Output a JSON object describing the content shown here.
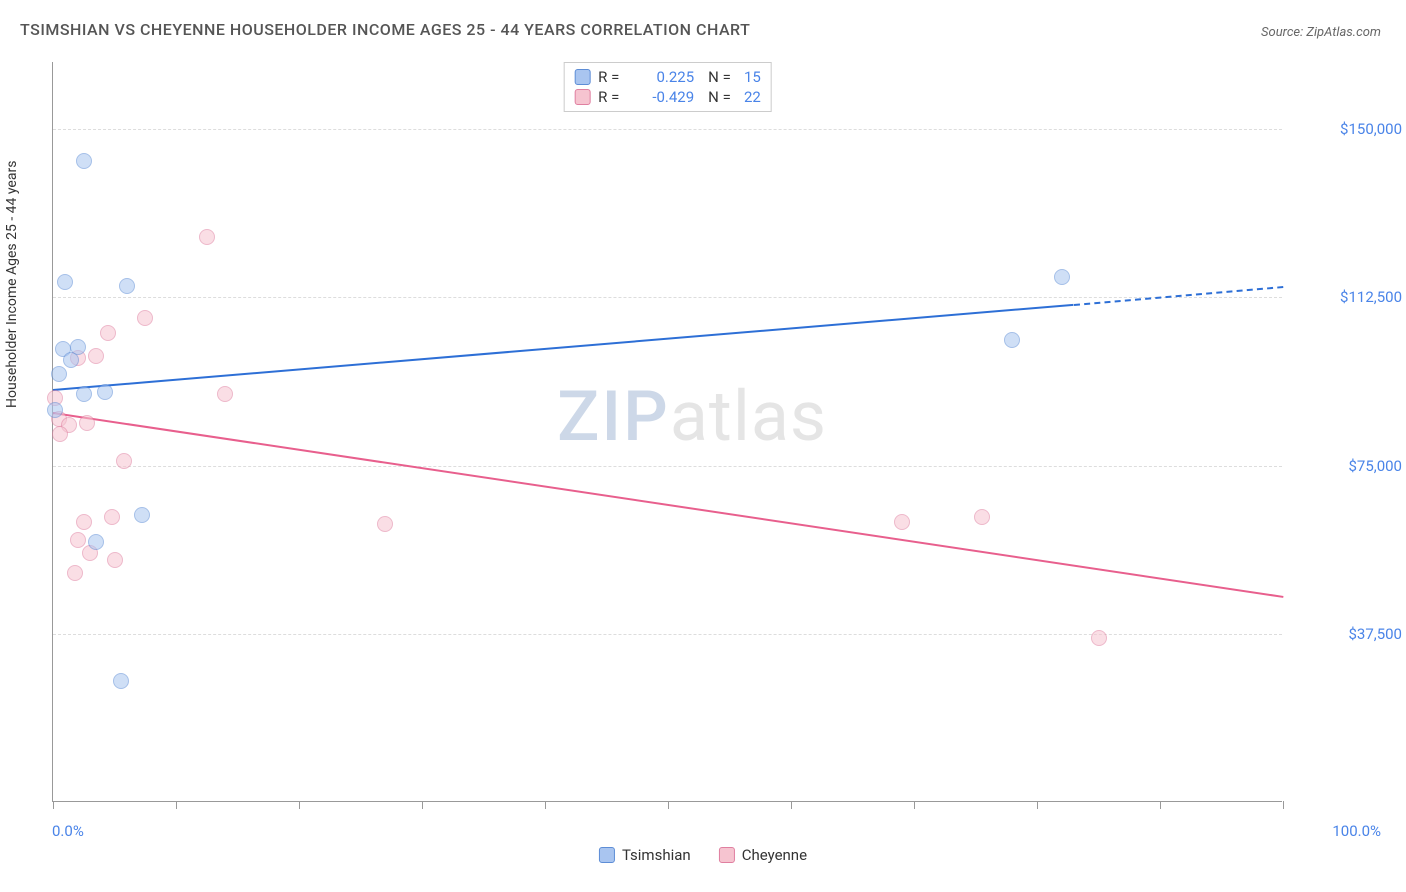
{
  "title": "TSIMSHIAN VS CHEYENNE HOUSEHOLDER INCOME AGES 25 - 44 YEARS CORRELATION CHART",
  "source": "Source: ZipAtlas.com",
  "watermark_zip": "ZIP",
  "watermark_atlas": "atlas",
  "chart": {
    "type": "scatter",
    "ylabel": "Householder Income Ages 25 - 44 years",
    "xlim": [
      0,
      100
    ],
    "ylim": [
      0,
      165000
    ],
    "x_tick_positions": [
      0,
      10,
      20,
      30,
      40,
      50,
      60,
      70,
      80,
      90,
      100
    ],
    "x_start_label": "0.0%",
    "x_end_label": "100.0%",
    "y_ticks": [
      {
        "value": 37500,
        "label": "$37,500"
      },
      {
        "value": 75000,
        "label": "$75,000"
      },
      {
        "value": 112500,
        "label": "$112,500"
      },
      {
        "value": 150000,
        "label": "$150,000"
      }
    ],
    "label_fontsize": 14,
    "axis_label_color": "#4a84e8",
    "grid_color": "#dddddd",
    "background_color": "#ffffff",
    "point_radius": 8,
    "point_opacity": 0.55,
    "point_border_width": 1.5
  },
  "series": {
    "tsimshian": {
      "label": "Tsimshian",
      "color_fill": "#a9c5f0",
      "color_stroke": "#5d8dd6",
      "trend_color": "#2d6fd6",
      "r": "0.225",
      "n": "15",
      "trend": {
        "x1": 0,
        "y1": 92000,
        "x2": 83,
        "y2": 111000,
        "dashed_from_x": 83,
        "dashed_to_x": 100,
        "dashed_y2": 115000
      },
      "points": [
        {
          "x": 2.5,
          "y": 143000
        },
        {
          "x": 1.0,
          "y": 116000
        },
        {
          "x": 6.0,
          "y": 115000
        },
        {
          "x": 0.8,
          "y": 101000
        },
        {
          "x": 2.0,
          "y": 101500
        },
        {
          "x": 1.5,
          "y": 98500
        },
        {
          "x": 0.5,
          "y": 95500
        },
        {
          "x": 2.5,
          "y": 91000
        },
        {
          "x": 4.2,
          "y": 91500
        },
        {
          "x": 7.2,
          "y": 64000
        },
        {
          "x": 3.5,
          "y": 58000
        },
        {
          "x": 5.5,
          "y": 27000
        },
        {
          "x": 82.0,
          "y": 117000
        },
        {
          "x": 78.0,
          "y": 103000
        },
        {
          "x": 0.2,
          "y": 87500
        }
      ]
    },
    "cheyenne": {
      "label": "Cheyenne",
      "color_fill": "#f6c4d0",
      "color_stroke": "#e07fa0",
      "trend_color": "#e85f8d",
      "r": "-0.429",
      "n": "22",
      "trend": {
        "x1": 0,
        "y1": 87000,
        "x2": 100,
        "y2": 46000
      },
      "points": [
        {
          "x": 12.5,
          "y": 126000
        },
        {
          "x": 7.5,
          "y": 108000
        },
        {
          "x": 4.5,
          "y": 104500
        },
        {
          "x": 2.0,
          "y": 99000
        },
        {
          "x": 3.5,
          "y": 99500
        },
        {
          "x": 0.2,
          "y": 90000
        },
        {
          "x": 14.0,
          "y": 91000
        },
        {
          "x": 0.5,
          "y": 85500
        },
        {
          "x": 1.3,
          "y": 84000
        },
        {
          "x": 2.8,
          "y": 84500
        },
        {
          "x": 0.6,
          "y": 82000
        },
        {
          "x": 5.8,
          "y": 76000
        },
        {
          "x": 2.5,
          "y": 62500
        },
        {
          "x": 4.8,
          "y": 63500
        },
        {
          "x": 2.0,
          "y": 58500
        },
        {
          "x": 3.0,
          "y": 55500
        },
        {
          "x": 5.0,
          "y": 54000
        },
        {
          "x": 1.8,
          "y": 51000
        },
        {
          "x": 27.0,
          "y": 62000
        },
        {
          "x": 69.0,
          "y": 62500
        },
        {
          "x": 75.5,
          "y": 63500
        },
        {
          "x": 85.0,
          "y": 36500
        }
      ]
    }
  },
  "legend_top": {
    "r_label": "R =",
    "n_label": "N ="
  },
  "legend_bottom": [
    {
      "key": "tsimshian"
    },
    {
      "key": "cheyenne"
    }
  ]
}
